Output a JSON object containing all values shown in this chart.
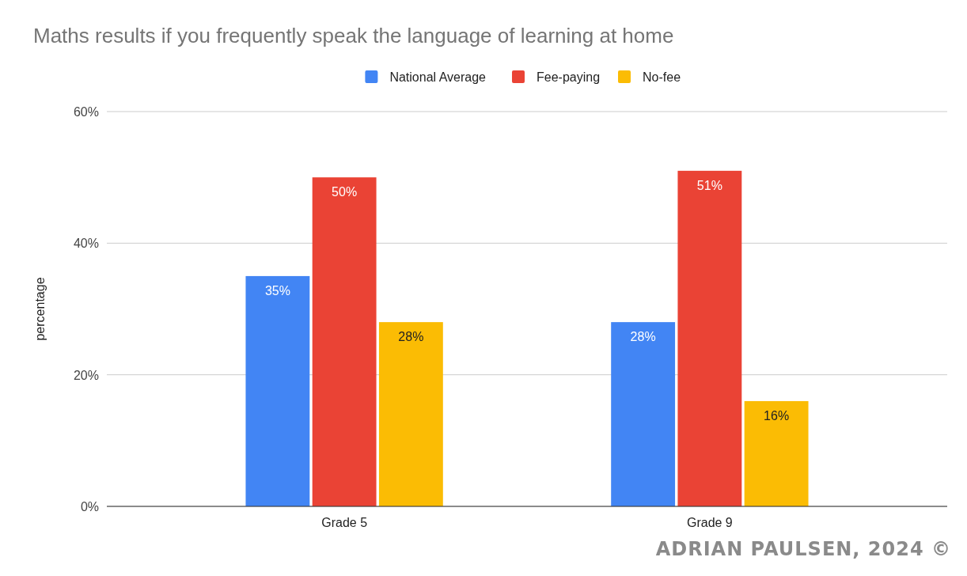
{
  "chart_data": {
    "type": "bar",
    "title": "Maths results if you frequently speak the language of learning at home",
    "ylabel": "percentage",
    "categories": [
      "Grade 5",
      "Grade 9"
    ],
    "series": [
      {
        "name": "National Average",
        "color": "#4285f4",
        "values": [
          35,
          28
        ]
      },
      {
        "name": "Fee-paying",
        "color": "#ea4335",
        "values": [
          50,
          51
        ]
      },
      {
        "name": "No-fee",
        "color": "#fbbc04",
        "values": [
          28,
          16
        ]
      }
    ],
    "value_labels": [
      [
        "35%",
        "28%"
      ],
      [
        "50%",
        "51%"
      ],
      [
        "28%",
        "16%"
      ]
    ],
    "ylim": [
      0,
      60
    ],
    "yticks": [
      {
        "value": 0,
        "label": "0%"
      },
      {
        "value": 20,
        "label": "20%"
      },
      {
        "value": 40,
        "label": "40%"
      },
      {
        "value": 60,
        "label": "60%"
      }
    ],
    "grid": "y",
    "legend": "top",
    "annotations": [
      "ADRIAN PAULSEN, 2024 ©"
    ]
  }
}
